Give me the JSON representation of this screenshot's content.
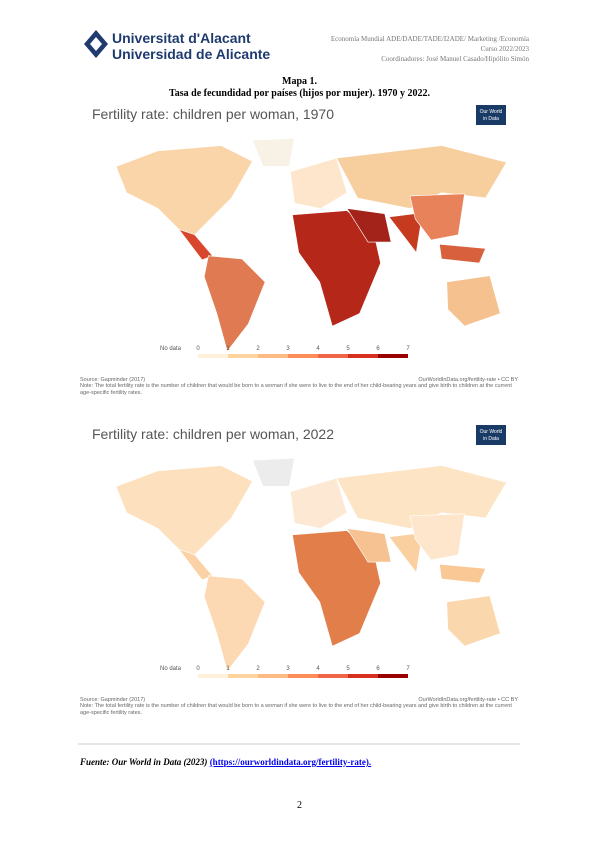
{
  "header": {
    "university": [
      "Universitat d'Alacant",
      "Universidad de Alicante"
    ],
    "course_lines": [
      "Economía Mundial ADE/DADE/TADE/I2ADE/ Marketing /Economía",
      "Curso 2022/2023",
      "Coordinadores: José Manuel Casado/Hipólito Simón"
    ]
  },
  "caption": {
    "title": "Mapa 1.",
    "subtitle": "Tasa de fecundidad por países (hijos por mujer). 1970 y 2022."
  },
  "maps": [
    {
      "title": "Fertility rate: children per woman, 1970",
      "logo": [
        "Our World",
        "in Data"
      ],
      "legend_label": "No data",
      "legend_ticks": [
        0,
        1,
        2,
        3,
        4,
        5,
        6,
        7
      ],
      "source": "Source: Gapminder (2017)",
      "url": "OurWorldInData.org/fertility-rate • CC BY",
      "note": "Note: The total fertility rate is the number of children that would be born to a woman if she were to live to the end of her child-bearing years and give birth to children at the current age-specific fertility rates."
    },
    {
      "title": "Fertility rate: children per woman, 2022",
      "logo": [
        "Our World",
        "in Data"
      ],
      "legend_label": "No data",
      "legend_ticks": [
        0,
        1,
        2,
        3,
        4,
        5,
        6,
        7
      ],
      "source": "Source: Gapminder (2017)",
      "url": "OurWorldInData.org/fertility-rate • CC BY",
      "note": "Note: The total fertility rate is the number of children that would be born to a woman if she were to live to the end of her child-bearing years and give birth to children at the current age-specific fertility rates."
    }
  ],
  "footer": {
    "source_prefix": "Fuente: Our World in Data (2023)",
    "source_link": "(https://ourworldindata.org/fertility-rate)."
  },
  "page_number": "2"
}
